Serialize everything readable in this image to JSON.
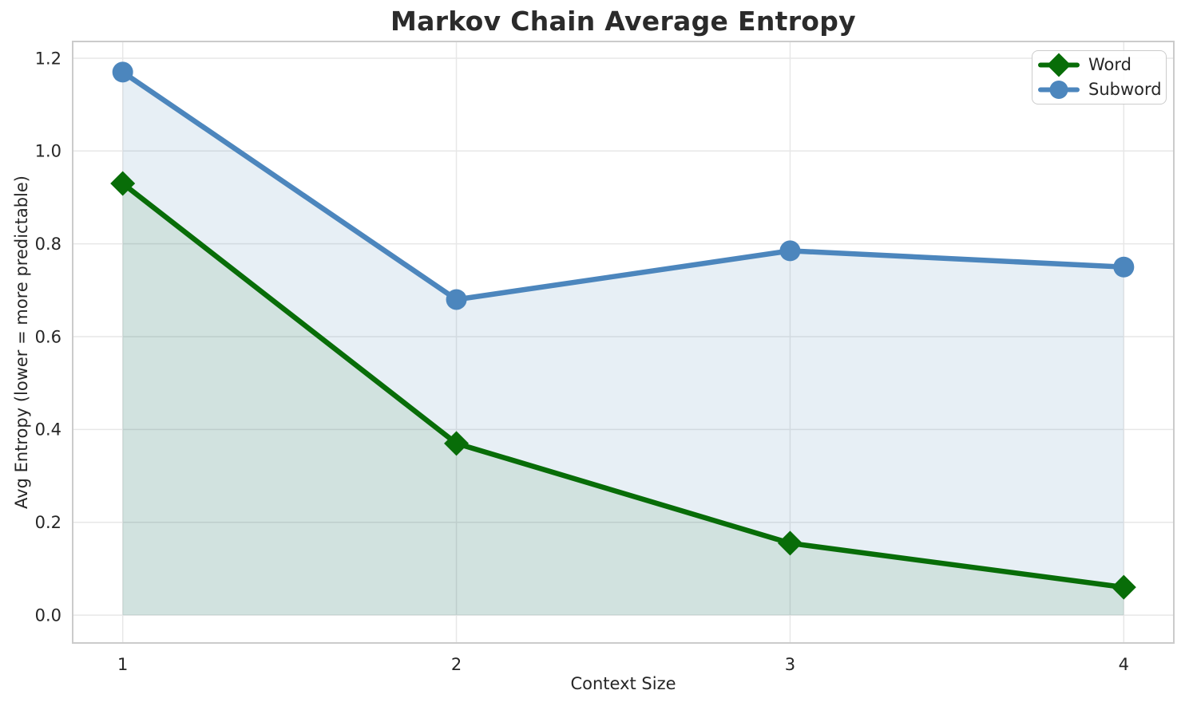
{
  "chart_data": {
    "type": "line",
    "title": "Markov Chain Average Entropy",
    "xlabel": "Context Size",
    "ylabel": "Avg Entropy (lower = more predictable)",
    "x": [
      1,
      2,
      3,
      4
    ],
    "xticks": [
      1,
      2,
      3,
      4
    ],
    "yticks": [
      0.0,
      0.2,
      0.4,
      0.6,
      0.8,
      1.0,
      1.2
    ],
    "xlim": [
      0.85,
      4.15
    ],
    "ylim": [
      -0.06,
      1.236
    ],
    "grid": true,
    "legend_position": "upper right",
    "series": [
      {
        "name": "Word",
        "marker": "diamond",
        "color": "#086d08",
        "fill_color": "rgba(8, 109, 8, 0.10)",
        "fill_to_zero": true,
        "values": [
          0.93,
          0.37,
          0.155,
          0.06
        ]
      },
      {
        "name": "Subword",
        "marker": "circle",
        "color": "#4c86bd",
        "fill_color": "rgba(70, 130, 180, 0.13)",
        "fill_to_zero": true,
        "values": [
          1.17,
          0.68,
          0.785,
          0.75
        ]
      }
    ],
    "colors": {
      "grid": "#e7e7e7",
      "spine": "#cbcbcb",
      "text": "#262626",
      "title": "#2b2b2b",
      "background": "#ffffff"
    }
  }
}
